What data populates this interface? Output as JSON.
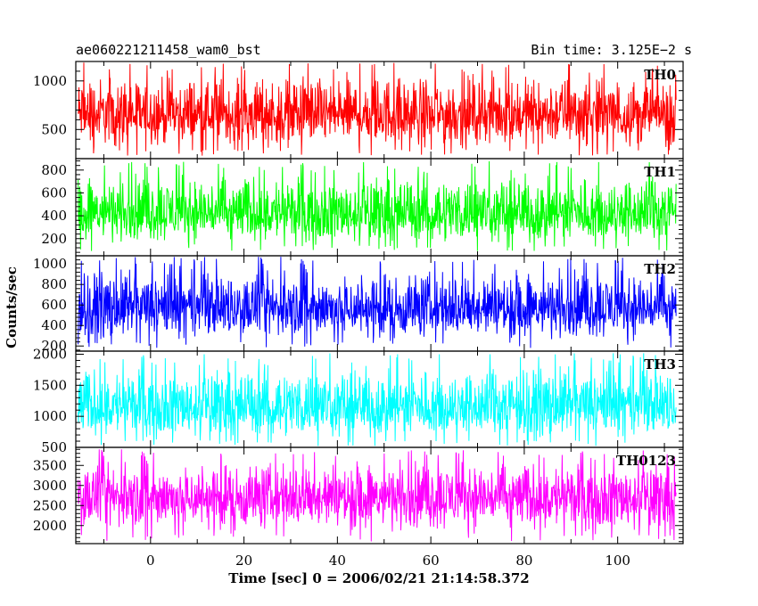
{
  "chart_data": {
    "type": "line",
    "title_left": "ae060221211458_wam0_bst",
    "title_right": "Bin time: 3.125E−2 s",
    "xlabel": "Time [sec] 0 = 2006/02/21 21:14:58.372",
    "ylabel": "Counts/sec",
    "xlim": [
      -16,
      114
    ],
    "x_ticks": [
      0,
      20,
      40,
      60,
      80,
      100
    ],
    "x_tick_labels": [
      "0",
      "20",
      "40",
      "60",
      "80",
      "100"
    ],
    "data_x_range": [
      -15.5,
      112.5
    ],
    "bin_time": 0.03125,
    "panels": [
      {
        "name": "TH0",
        "color": "#ff0000",
        "ylim": [
          200,
          1200
        ],
        "y_ticks": [
          500,
          1000
        ],
        "y_tick_labels": [
          "500",
          "1000"
        ],
        "approx_mean": 650,
        "approx_range": [
          230,
          1200
        ]
      },
      {
        "name": "TH1",
        "color": "#00ff00",
        "ylim": [
          50,
          900
        ],
        "y_ticks": [
          200,
          400,
          600,
          800
        ],
        "y_tick_labels": [
          "200",
          "400",
          "600",
          "800"
        ],
        "approx_mean": 420,
        "approx_range": [
          90,
          880
        ]
      },
      {
        "name": "TH2",
        "color": "#0000ff",
        "ylim": [
          150,
          1080
        ],
        "y_ticks": [
          200,
          400,
          600,
          800,
          1000
        ],
        "y_tick_labels": [
          "200",
          "400",
          "600",
          "800",
          "1000"
        ],
        "approx_mean": 560,
        "approx_range": [
          180,
          1070
        ]
      },
      {
        "name": "TH3",
        "color": "#00ffff",
        "ylim": [
          500,
          2050
        ],
        "y_ticks": [
          500,
          1000,
          1500,
          2000
        ],
        "y_tick_labels": [
          "500",
          "1000",
          "1500",
          "2000"
        ],
        "approx_mean": 1150,
        "approx_range": [
          520,
          2020
        ]
      },
      {
        "name": "TH0123",
        "color": "#ff00ff",
        "ylim": [
          1550,
          3950
        ],
        "y_ticks": [
          2000,
          2500,
          3000,
          3500
        ],
        "y_tick_labels": [
          "2000",
          "2500",
          "3000",
          "3500"
        ],
        "approx_mean": 2700,
        "approx_range": [
          1600,
          3900
        ]
      }
    ]
  }
}
